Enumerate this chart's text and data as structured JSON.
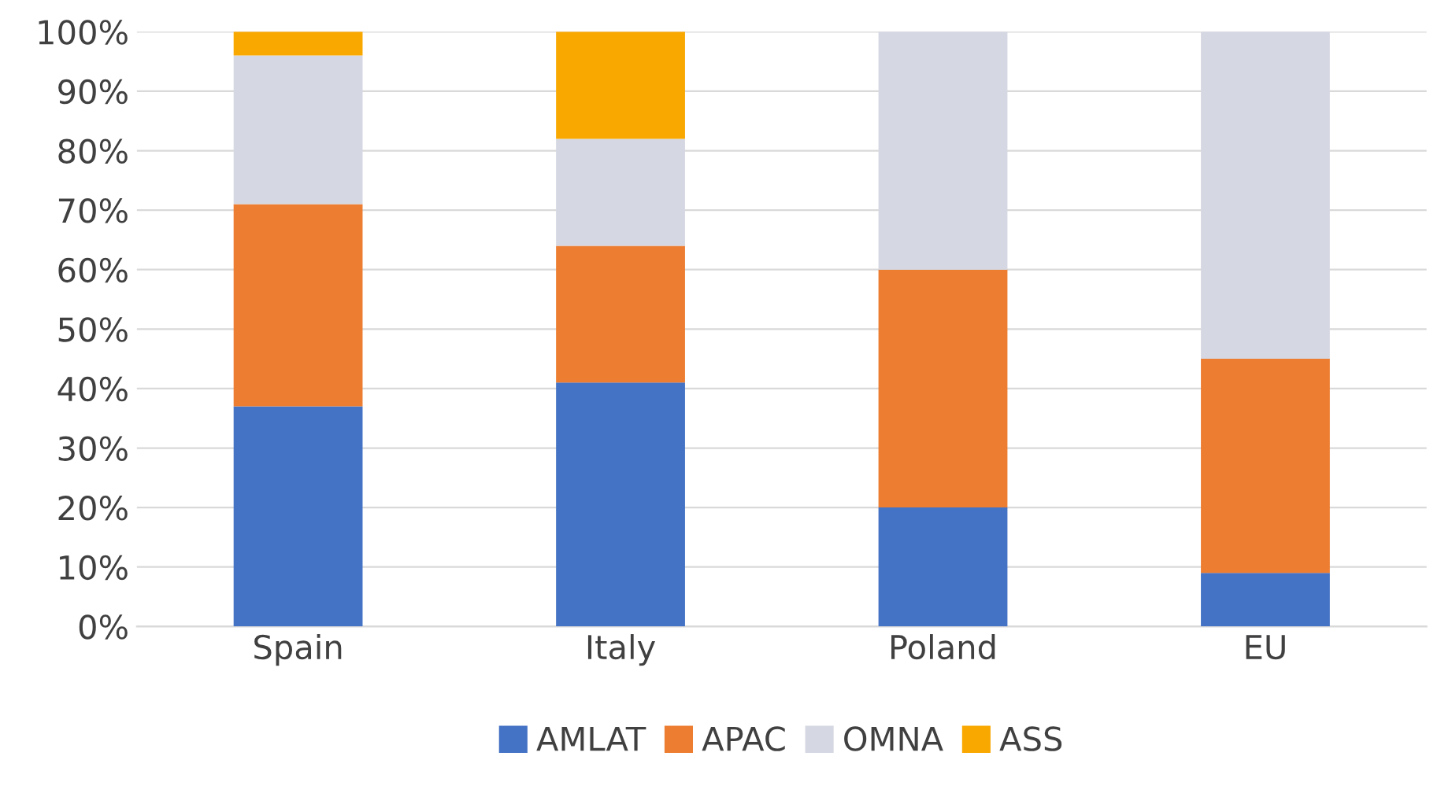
{
  "chart_data": {
    "type": "bar",
    "stacked": true,
    "categories": [
      "Spain",
      "Italy",
      "Poland",
      "EU"
    ],
    "series": [
      {
        "name": "AMLAT",
        "color": "#4472c4",
        "values": [
          37,
          41,
          20,
          9
        ]
      },
      {
        "name": "APAC",
        "color": "#ed7d31",
        "values": [
          34,
          23,
          40,
          36
        ]
      },
      {
        "name": "OMNA",
        "color": "#d5d8e2",
        "values": [
          25,
          18,
          40,
          55
        ]
      },
      {
        "name": "ASS",
        "color": "#f9a800",
        "values": [
          4,
          18,
          0,
          0
        ]
      }
    ],
    "ylim": [
      0,
      100
    ],
    "yticks": [
      {
        "value": 0,
        "label": "0%"
      },
      {
        "value": 10,
        "label": "10%"
      },
      {
        "value": 20,
        "label": "20%"
      },
      {
        "value": 30,
        "label": "30%"
      },
      {
        "value": 40,
        "label": "40%"
      },
      {
        "value": 50,
        "label": "50%"
      },
      {
        "value": 60,
        "label": "60%"
      },
      {
        "value": 70,
        "label": "70%"
      },
      {
        "value": 80,
        "label": "80%"
      },
      {
        "value": 90,
        "label": "90%"
      },
      {
        "value": 100,
        "label": "100%"
      }
    ],
    "grid": "y",
    "legend": "bottom"
  }
}
